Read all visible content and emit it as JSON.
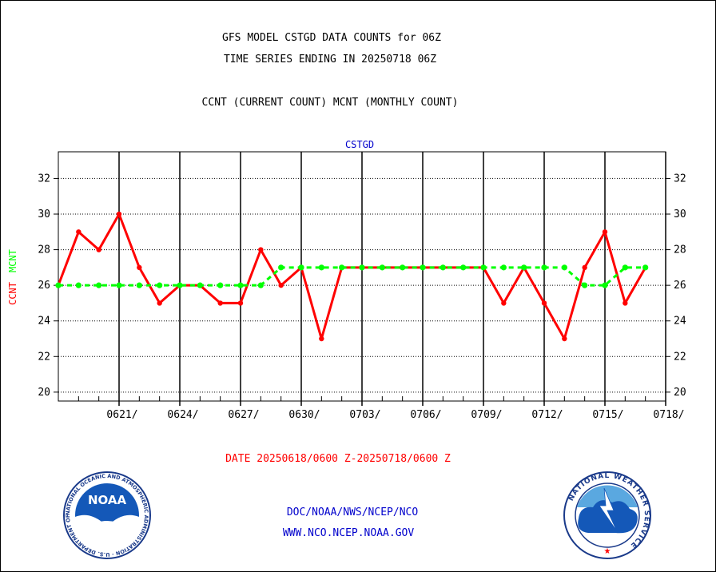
{
  "header": {
    "line1": "GFS MODEL CSTGD DATA COUNTS for 06Z",
    "line2": "TIME SERIES ENDING IN 20250718 06Z",
    "line3": "CCNT (CURRENT COUNT) MCNT (MONTHLY COUNT)"
  },
  "footer": {
    "date_range": "DATE 20250618/0600 Z-20250718/0600 Z",
    "agency": "DOC/NOAA/NWS/NCEP/NCO",
    "website": "WWW.NCO.NCEP.NOAA.GOV"
  },
  "logos": {
    "noaa_text": "NOAA",
    "noaa_ring": "NATIONAL OCEANIC AND ATMOSPHERIC ADMINISTRATION · U.S. DEPARTMENT OF COMMERCE",
    "nws_ring": "NATIONAL WEATHER SERVICE"
  },
  "colors": {
    "ccnt": "#ff0000",
    "mcnt": "#00ff00",
    "title": "#0000cc",
    "axis": "#000000"
  },
  "chart_data": {
    "type": "line",
    "title": "CSTGD",
    "ylabel_parts": [
      {
        "text": "CCNT",
        "color": "#ff0000"
      },
      {
        "text": "MCNT",
        "color": "#00ff00"
      }
    ],
    "xlabel": "DATE 20250618/0600 Z-20250718/0600 Z",
    "ylim": [
      19.5,
      33.5
    ],
    "yticks": [
      20,
      22,
      24,
      26,
      28,
      30,
      32
    ],
    "x_day_range": [
      0,
      30
    ],
    "xtick_labels": [
      {
        "day": 3,
        "label": "0621/"
      },
      {
        "day": 6,
        "label": "0624/"
      },
      {
        "day": 9,
        "label": "0627/"
      },
      {
        "day": 12,
        "label": "0630/"
      },
      {
        "day": 15,
        "label": "0703/"
      },
      {
        "day": 18,
        "label": "0706/"
      },
      {
        "day": 21,
        "label": "0709/"
      },
      {
        "day": 24,
        "label": "0712/"
      },
      {
        "day": 27,
        "label": "0715/"
      },
      {
        "day": 30,
        "label": "0718/"
      }
    ],
    "grid": true,
    "series": [
      {
        "name": "CCNT",
        "color": "#ff0000",
        "style": "solid",
        "values": [
          26,
          29,
          28,
          30,
          27,
          25,
          26,
          26,
          25,
          25,
          28,
          26,
          27,
          23,
          27,
          27,
          27,
          27,
          27,
          27,
          27,
          27,
          25,
          27,
          25,
          23,
          27,
          29,
          25,
          27
        ]
      },
      {
        "name": "MCNT",
        "color": "#00ff00",
        "style": "dashed",
        "values": [
          26,
          26,
          26,
          26,
          26,
          26,
          26,
          26,
          26,
          26,
          26,
          27,
          27,
          27,
          27,
          27,
          27,
          27,
          27,
          27,
          27,
          27,
          27,
          27,
          27,
          27,
          26,
          26,
          27,
          27
        ]
      }
    ]
  }
}
